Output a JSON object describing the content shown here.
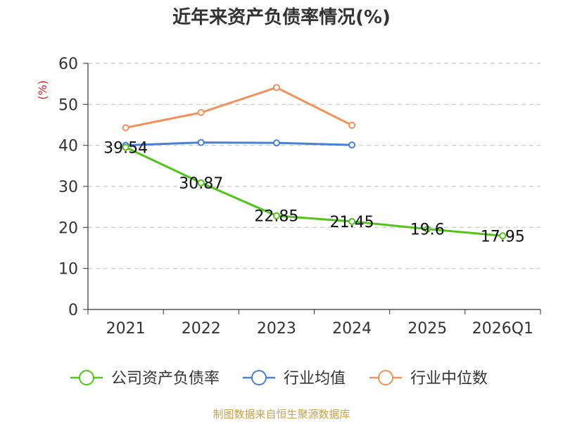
{
  "chart_data": {
    "type": "line",
    "title": "近年来资产负债率情况(%)",
    "ylabel": "(%)",
    "categories": [
      "2021",
      "2022",
      "2023",
      "2024",
      "2025",
      "2026Q1"
    ],
    "ylim": [
      0,
      60
    ],
    "yticks": [
      0,
      10,
      20,
      30,
      40,
      50,
      60
    ],
    "grid": true,
    "legend_position": "bottom",
    "series": [
      {
        "name": "公司资产负债率",
        "color": "#52c41a",
        "values": [
          39.54,
          30.87,
          22.85,
          21.45,
          19.6,
          17.95
        ],
        "labels": [
          "39.54",
          "30.87",
          "22.85",
          "21.45",
          "19.6",
          "17.95"
        ]
      },
      {
        "name": "行业均值",
        "color": "#4a7fd6",
        "values": [
          40.0,
          40.7,
          40.6,
          40.1,
          null,
          null
        ]
      },
      {
        "name": "行业中位数",
        "color": "#f4905a",
        "values": [
          44.3,
          48.0,
          54.1,
          44.9,
          null,
          null
        ]
      }
    ],
    "source": "制图数据来自恒生聚源数据库"
  }
}
